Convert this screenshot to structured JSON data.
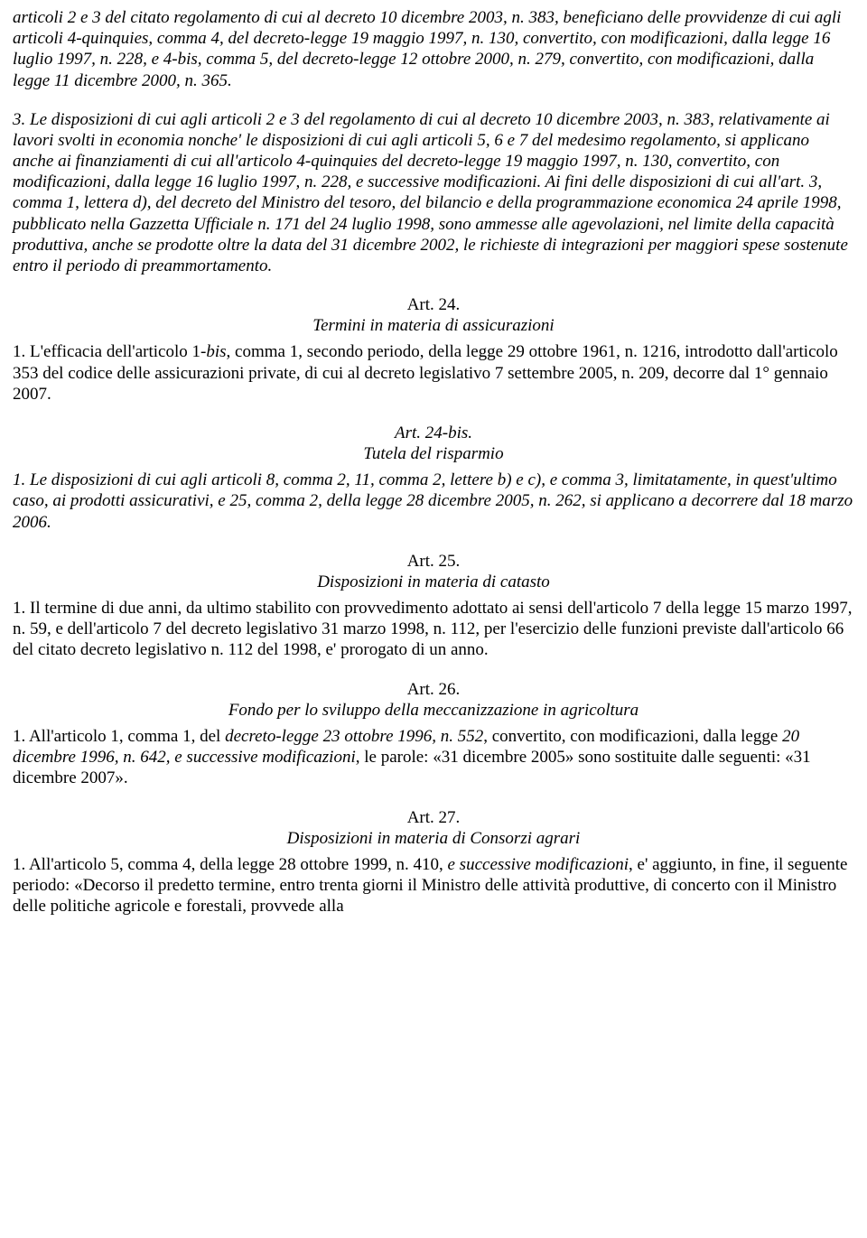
{
  "p0": {
    "a": "articoli 2 e 3 del citato regolamento di cui al decreto 10 dicembre 2003, n. 383, beneficiano delle provvidenze di cui agli articoli 4-quinquies, comma 4, del decreto-legge 19 maggio 1997, n. 130, convertito, con modificazioni, dalla legge 16 luglio 1997, n. 228, e 4-bis, comma 5, del decreto-legge 12 ottobre 2000, n. 279, convertito, con modificazioni, dalla legge 11 dicembre 2000, n. 365."
  },
  "p1": {
    "a": "3. Le disposizioni di cui agli articoli 2 e 3 del regolamento di cui al decreto 10 dicembre 2003, n. 383, relativamente ai lavori svolti in economia nonche' le disposizioni di cui agli articoli 5, 6 e 7 del medesimo regolamento, si applicano anche ai finanziamenti di cui all'articolo 4-quinquies del decreto-legge 19 maggio 1997, n. 130, convertito, con modificazioni, dalla legge 16 luglio 1997, n. 228, e successive modificazioni. Ai fini delle disposizioni di cui all'art. 3, comma 1, lettera d), del decreto del Ministro del tesoro, del bilancio e della programmazione economica 24 aprile 1998, pubblicato nella Gazzetta Ufficiale n. 171 del 24 luglio 1998, sono ammesse alle agevolazioni, nel limite della capacità produttiva, anche se prodotte oltre la data del 31 dicembre 2002, le richieste ",
    "b": "di integrazioni per maggiori spese sostenute entro il periodo di preammortamento."
  },
  "art24": {
    "num": "Art. 24.",
    "title": "Termini in materia di assicurazioni"
  },
  "p24": {
    "a": "1. L'efficacia dell'articolo 1-",
    "b": "bis",
    "c": ", comma 1, secondo periodo, della legge 29 ottobre 1961, n. 1216, introdotto dall'articolo 353 del codice delle assicurazioni private, di cui al decreto legislativo 7 settembre 2005, n. 209, decorre dal 1° gennaio 2007."
  },
  "art24bis": {
    "num": "Art. 24-bis.",
    "title": "Tutela del risparmio"
  },
  "p24bis": {
    "a": "1. Le disposizioni di cui agli articoli 8, comma 2, 11, comma 2, lettere b) e c), e comma 3, limitatamente, in quest'ultimo caso, ai prodotti assicurativi, e 25, comma 2, della legge 28 dicembre 2005, n. 262, si applicano a decorrere dal 18 marzo 2006."
  },
  "art25": {
    "num": "Art. 25.",
    "title": "Disposizioni in materia di catasto"
  },
  "p25": {
    "a": "1. Il termine di due anni, da ultimo stabilito con provvedimento adottato ai sensi dell'articolo 7 della legge 15 marzo 1997, n. 59, e dell'articolo 7 del decreto legislativo 31 marzo 1998, n. 112, per l'esercizio delle funzioni previste dall'articolo 66 del citato decreto legislativo n. 112 del 1998, e' prorogato di un anno."
  },
  "art26": {
    "num": "Art. 26.",
    "title": "Fondo per lo sviluppo della meccanizzazione in agricoltura"
  },
  "p26": {
    "a": "1. All'articolo 1, comma 1, del ",
    "b": "decreto-legge 23 ottobre 1996, n. 552",
    "c": ", convertito, con modificazioni, dalla legge ",
    "d": "20 dicembre 1996, n. 642, e successive modificazioni",
    "e": ", le parole: «31 dicembre 2005» sono sostituite dalle seguenti: «31 dicembre 2007»."
  },
  "art27": {
    "num": "Art. 27.",
    "title": "Disposizioni in materia di Consorzi agrari"
  },
  "p27": {
    "a": "1. All'articolo 5, comma 4, della legge 28 ottobre 1999, n. 410, ",
    "b": "e successive modificazioni",
    "c": ", e' aggiunto, in fine, il seguente periodo: «Decorso il predetto termine, entro trenta giorni il Ministro delle attività produttive, di concerto con il Ministro delle politiche agricole e forestali, provvede alla"
  }
}
